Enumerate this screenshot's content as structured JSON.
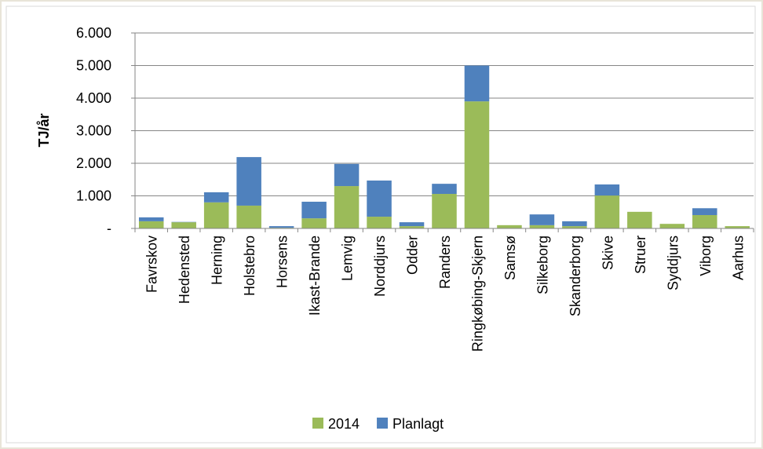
{
  "chart_data": {
    "type": "stacked_bar",
    "ylabel": "TJ/år",
    "categories": [
      "Favrskov",
      "Hedensted",
      "Herning",
      "Holstebro",
      "Horsens",
      "Ikast-Brande",
      "Lemvig",
      "Norddjurs",
      "Odder",
      "Randers",
      "Ringkøbing-Skjern",
      "Samsø",
      "Silkeborg",
      "Skanderborg",
      "Skive",
      "Struer",
      "Syddjurs",
      "Viborg",
      "Aarhus"
    ],
    "series": [
      {
        "name": "2014",
        "color": "#9bbb59",
        "values": [
          220,
          190,
          800,
          700,
          20,
          310,
          1300,
          360,
          70,
          1060,
          3900,
          100,
          100,
          70,
          1010,
          510,
          140,
          410,
          70
        ]
      },
      {
        "name": "Planlagt",
        "color": "#4f81bd",
        "values": [
          120,
          10,
          310,
          1490,
          50,
          510,
          680,
          1110,
          120,
          310,
          1100,
          0,
          330,
          150,
          340,
          0,
          0,
          210,
          0
        ]
      }
    ],
    "ylim": [
      0,
      6000
    ],
    "yticks": [
      {
        "value": 0,
        "label": "-"
      },
      {
        "value": 1000,
        "label": "1.000"
      },
      {
        "value": 2000,
        "label": "2.000"
      },
      {
        "value": 3000,
        "label": "3.000"
      },
      {
        "value": 4000,
        "label": "4.000"
      },
      {
        "value": 5000,
        "label": "5.000"
      },
      {
        "value": 6000,
        "label": "6.000"
      }
    ],
    "grid": true,
    "legend": "bottom"
  }
}
